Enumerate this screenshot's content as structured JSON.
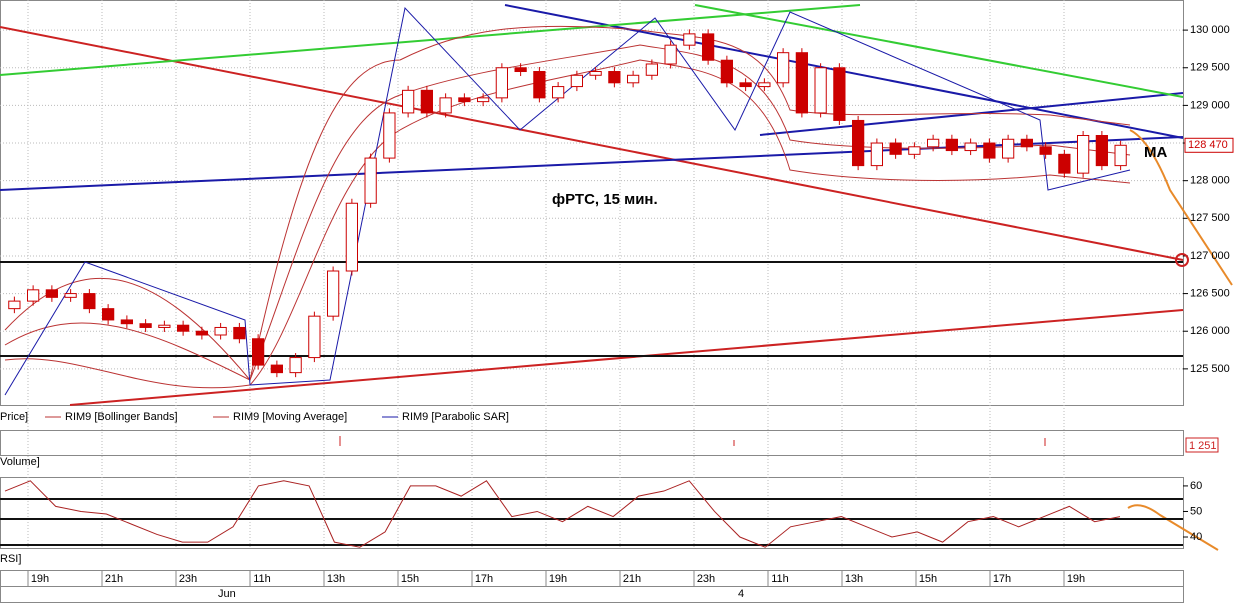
{
  "chart_data": {
    "type": "candlestick",
    "annotation": "фРТС,  15 мин.",
    "indicator_note": "MA",
    "legend": [
      "Price]",
      "RIM9 [Bollinger Bands]",
      "RIM9 [Moving Average]",
      "RIM9 [Parabolic SAR]"
    ],
    "volume_label": "Volume]",
    "volume_last": "1 251",
    "rsi_label": "RSI]",
    "last_price": 128470,
    "last_price_label": "128 470",
    "color": "#cc0000",
    "open": [
      126300,
      126400,
      126550,
      126450,
      126500,
      126300,
      126150,
      126100,
      126050,
      126080,
      126000,
      125950,
      126050,
      125900,
      125550,
      125450,
      125650,
      126200,
      126800,
      127700,
      128300,
      128900,
      129200,
      128900,
      129100,
      129050,
      129100,
      129500,
      129450,
      129100,
      129250,
      129400,
      129450,
      129300,
      129400,
      129550,
      129800,
      129950,
      129600,
      129300,
      129250,
      129300,
      129700,
      128900,
      129500,
      128800,
      128200,
      128500,
      128350,
      128450,
      128550,
      128400,
      128500,
      128300,
      128550,
      128450,
      128350,
      128100,
      128600,
      128200
    ],
    "high": [
      126460,
      126610,
      126610,
      126560,
      126560,
      126360,
      126210,
      126160,
      126140,
      126140,
      126060,
      126110,
      126110,
      125960,
      125610,
      125710,
      126260,
      126860,
      127760,
      128360,
      128960,
      129260,
      129260,
      129160,
      129160,
      129160,
      129560,
      129560,
      129510,
      129310,
      129460,
      129510,
      129510,
      129460,
      129610,
      129860,
      130010,
      130010,
      129660,
      129360,
      129360,
      129760,
      129760,
      129560,
      129560,
      128860,
      128560,
      128560,
      128510,
      128610,
      128610,
      128560,
      128560,
      128610,
      128610,
      128510,
      128410,
      128660,
      128660,
      128530
    ],
    "low": [
      126240,
      126340,
      126390,
      126390,
      126240,
      126090,
      126040,
      125990,
      125990,
      125940,
      125890,
      125890,
      125840,
      125490,
      125390,
      125390,
      125590,
      126140,
      126740,
      127640,
      128240,
      128840,
      128840,
      128840,
      128990,
      128990,
      129040,
      129390,
      129040,
      129040,
      129190,
      129340,
      129240,
      129240,
      129340,
      129490,
      129740,
      129540,
      129240,
      129190,
      129190,
      129240,
      128840,
      128840,
      128740,
      128140,
      128140,
      128290,
      128290,
      128390,
      128340,
      128340,
      128240,
      128240,
      128390,
      128290,
      128040,
      128040,
      128140,
      128140
    ],
    "close": [
      126400,
      126550,
      126450,
      126500,
      126300,
      126150,
      126100,
      126050,
      126080,
      126000,
      125950,
      126050,
      125900,
      125550,
      125450,
      125650,
      126200,
      126800,
      127700,
      128300,
      128900,
      129200,
      128900,
      129100,
      129050,
      129100,
      129500,
      129450,
      129100,
      129250,
      129400,
      129450,
      129300,
      129400,
      129550,
      129800,
      129950,
      129600,
      129300,
      129250,
      129300,
      129700,
      128900,
      129500,
      128800,
      128200,
      128500,
      128350,
      128450,
      128550,
      128400,
      128500,
      128300,
      128550,
      128450,
      128350,
      128100,
      128600,
      128200,
      128470
    ],
    "ylim": [
      125020,
      130400
    ],
    "yticks": [
      {
        "value": 125500,
        "label": "125 500"
      },
      {
        "value": 126000,
        "label": "126 000"
      },
      {
        "value": 126500,
        "label": "126 500"
      },
      {
        "value": 127000,
        "label": "127 000"
      },
      {
        "value": 127500,
        "label": "127 500"
      },
      {
        "value": 128000,
        "label": "128 000"
      },
      {
        "value": 128500,
        "label": "128 500"
      },
      {
        "value": 129000,
        "label": "129 000"
      },
      {
        "value": 129500,
        "label": "129 500"
      },
      {
        "value": 130000,
        "label": "130 000"
      }
    ],
    "time_ticks": [
      "19h",
      "21h",
      "23h",
      "11h",
      "13h",
      "15h",
      "17h",
      "19h",
      "21h",
      "23h",
      "11h",
      "13h",
      "15h",
      "17h",
      "19h"
    ],
    "date_ticks": [
      "Jun",
      "4"
    ],
    "rsi": {
      "values": [
        58,
        62,
        52,
        50,
        49,
        45,
        41,
        38,
        38,
        44,
        60,
        62,
        60,
        38,
        36,
        42,
        60,
        60,
        56,
        62,
        48,
        50,
        46,
        52,
        48,
        56,
        58,
        62,
        50,
        40,
        36,
        44,
        46,
        48,
        44,
        40,
        42,
        38,
        46,
        48,
        44,
        48,
        52,
        46,
        48
      ],
      "ylim": [
        35.7,
        63.1
      ],
      "yticks": [
        40,
        50,
        60
      ],
      "color": "#aa2222"
    }
  }
}
